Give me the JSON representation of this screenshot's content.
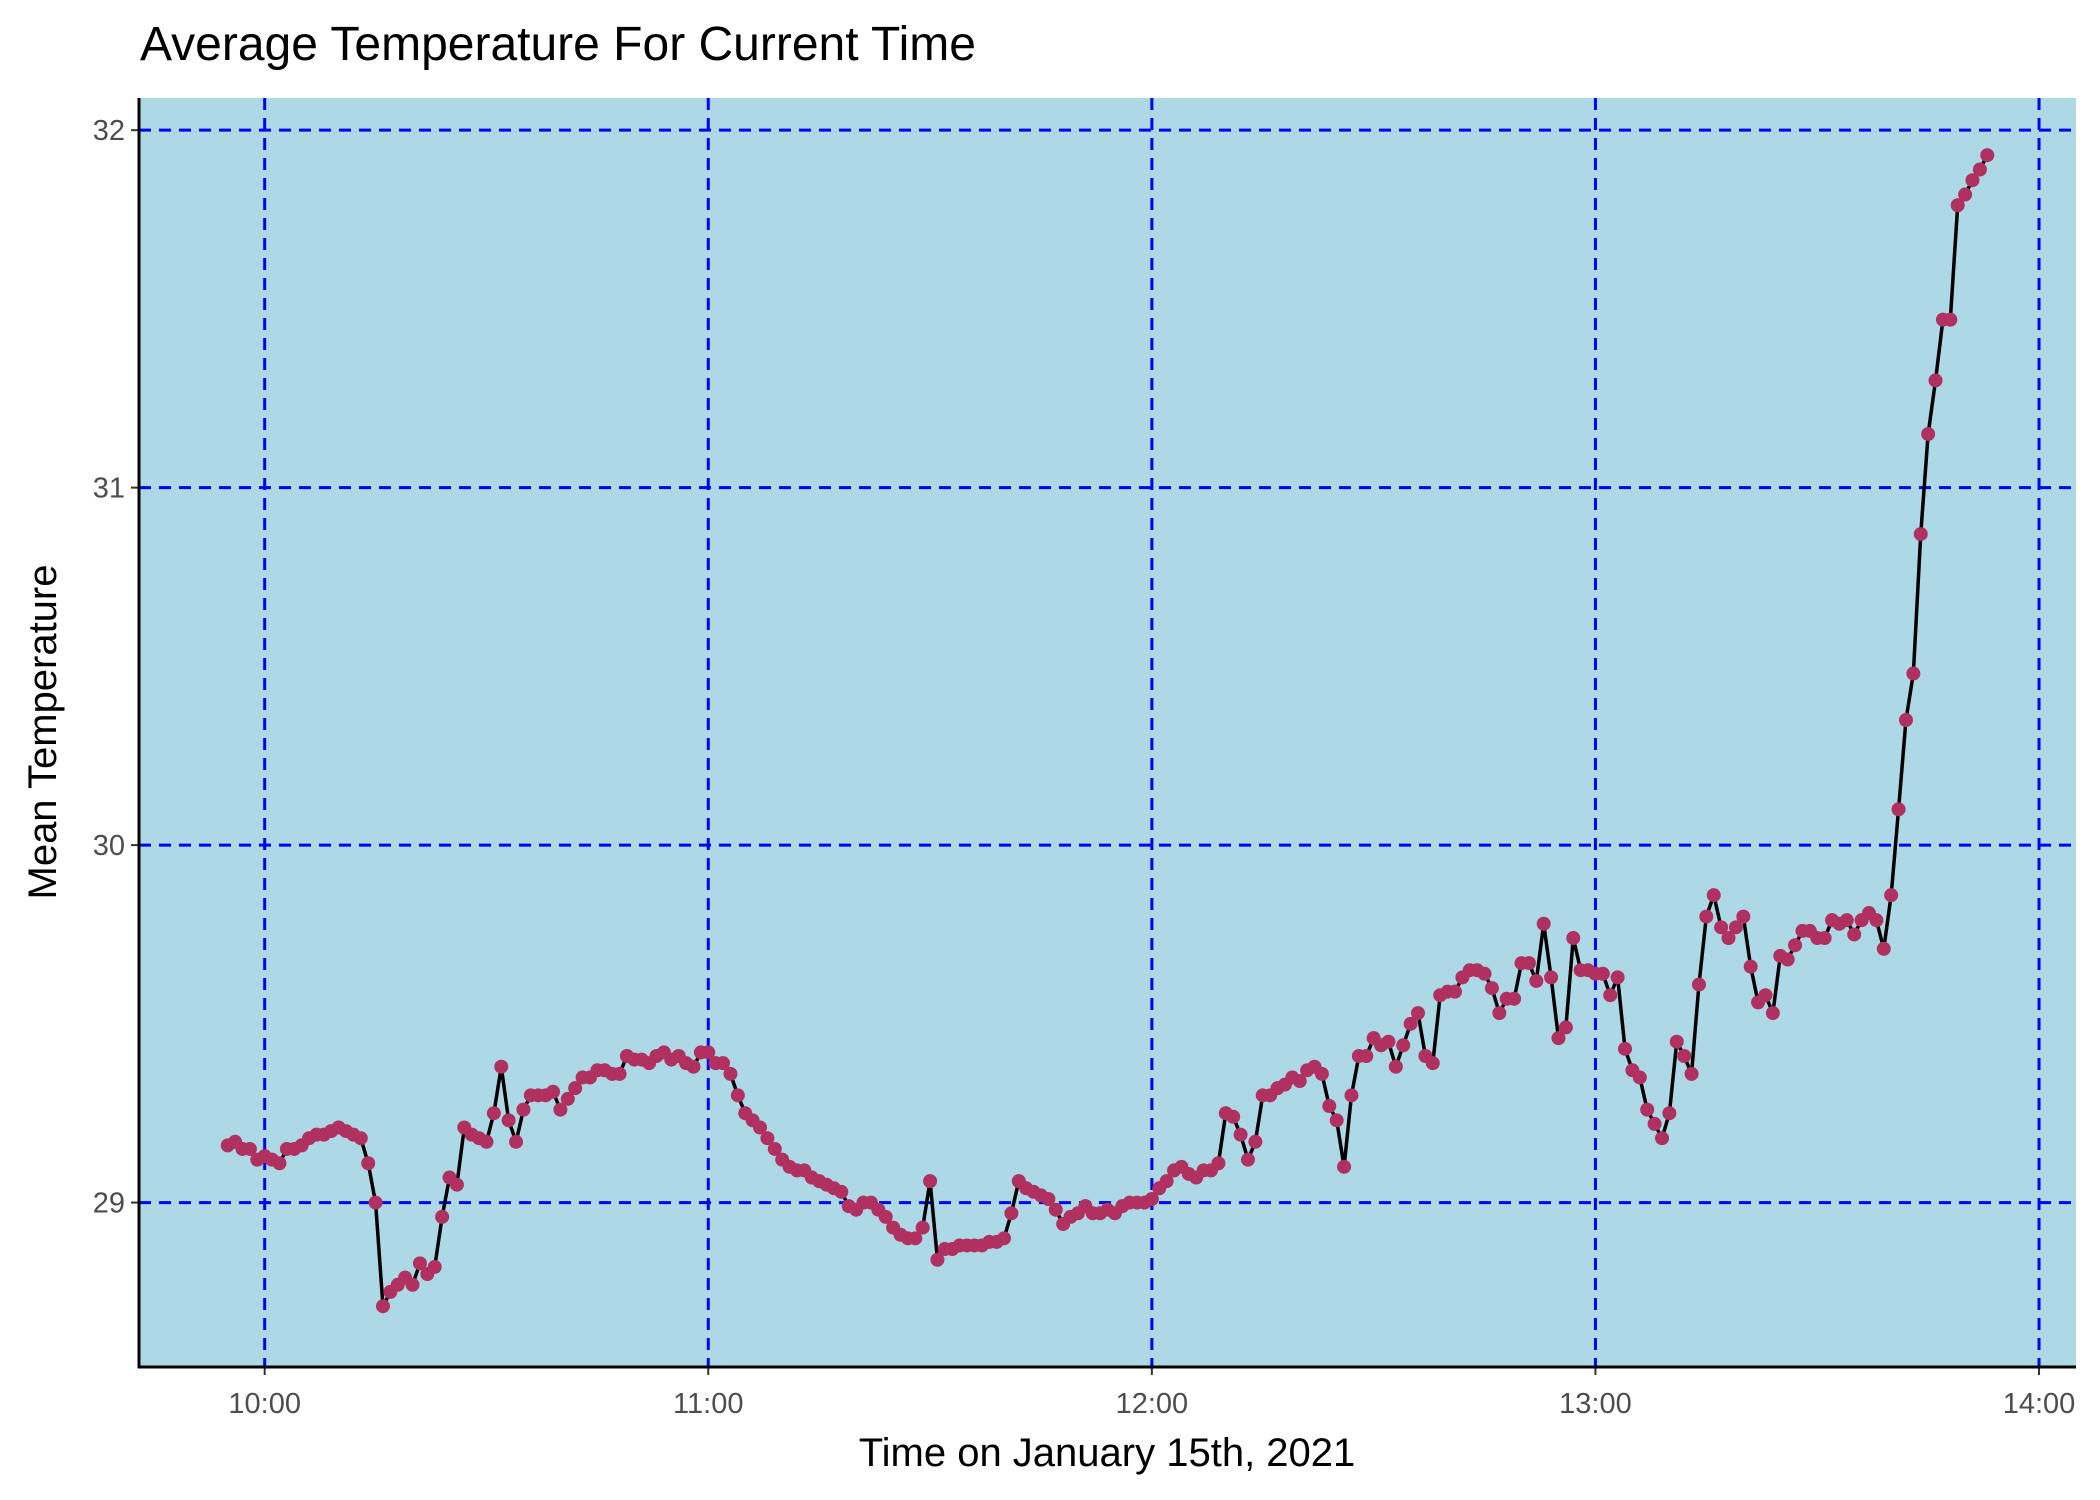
{
  "chart_data": {
    "type": "line",
    "title": "Average Temperature For Current Time",
    "x_label": "Time on January 15th, 2021",
    "y_label": "Mean Temperature",
    "background": "#add8e6",
    "grid": true,
    "grid_color": "#0000ff",
    "line_color": "#000000",
    "point_color": "#b03060",
    "xlim": [
      "09:43",
      "14:05"
    ],
    "ylim": [
      28.54,
      32.09
    ],
    "xticks": [
      "10:00",
      "11:00",
      "12:00",
      "13:00",
      "14:00"
    ],
    "yticks": [
      29,
      30,
      31,
      32
    ],
    "x": [
      "09:55",
      "09:56",
      "09:57",
      "09:58",
      "09:59",
      "10:00",
      "10:01",
      "10:02",
      "10:03",
      "10:04",
      "10:05",
      "10:06",
      "10:07",
      "10:08",
      "10:09",
      "10:10",
      "10:11",
      "10:12",
      "10:13",
      "10:14",
      "10:15",
      "10:16",
      "10:17",
      "10:18",
      "10:19",
      "10:20",
      "10:21",
      "10:22",
      "10:23",
      "10:24",
      "10:25",
      "10:26",
      "10:27",
      "10:28",
      "10:29",
      "10:30",
      "10:31",
      "10:32",
      "10:33",
      "10:34",
      "10:35",
      "10:36",
      "10:37",
      "10:38",
      "10:39",
      "10:40",
      "10:41",
      "10:42",
      "10:43",
      "10:44",
      "10:45",
      "10:46",
      "10:47",
      "10:48",
      "10:49",
      "10:50",
      "10:51",
      "10:52",
      "10:53",
      "10:54",
      "10:55",
      "10:56",
      "10:57",
      "10:58",
      "10:59",
      "11:00",
      "11:01",
      "11:02",
      "11:03",
      "11:04",
      "11:05",
      "11:06",
      "11:07",
      "11:08",
      "11:09",
      "11:10",
      "11:11",
      "11:12",
      "11:13",
      "11:14",
      "11:15",
      "11:16",
      "11:17",
      "11:18",
      "11:19",
      "11:20",
      "11:21",
      "11:22",
      "11:23",
      "11:24",
      "11:25",
      "11:26",
      "11:27",
      "11:28",
      "11:29",
      "11:30",
      "11:31",
      "11:32",
      "11:33",
      "11:34",
      "11:35",
      "11:36",
      "11:37",
      "11:38",
      "11:39",
      "11:40",
      "11:41",
      "11:42",
      "11:43",
      "11:44",
      "11:45",
      "11:46",
      "11:47",
      "11:48",
      "11:49",
      "11:50",
      "11:51",
      "11:52",
      "11:53",
      "11:54",
      "11:55",
      "11:56",
      "11:57",
      "11:58",
      "11:59",
      "12:00",
      "12:01",
      "12:02",
      "12:03",
      "12:04",
      "12:05",
      "12:06",
      "12:07",
      "12:08",
      "12:09",
      "12:10",
      "12:11",
      "12:12",
      "12:13",
      "12:14",
      "12:15",
      "12:16",
      "12:17",
      "12:18",
      "12:19",
      "12:20",
      "12:21",
      "12:22",
      "12:23",
      "12:24",
      "12:25",
      "12:26",
      "12:27",
      "12:28",
      "12:29",
      "12:30",
      "12:31",
      "12:32",
      "12:33",
      "12:34",
      "12:35",
      "12:36",
      "12:37",
      "12:38",
      "12:39",
      "12:40",
      "12:41",
      "12:42",
      "12:43",
      "12:44",
      "12:45",
      "12:46",
      "12:47",
      "12:48",
      "12:49",
      "12:50",
      "12:51",
      "12:52",
      "12:53",
      "12:54",
      "12:55",
      "12:56",
      "12:57",
      "12:58",
      "12:59",
      "13:00",
      "13:01",
      "13:02",
      "13:03",
      "13:04",
      "13:05",
      "13:06",
      "13:07",
      "13:08",
      "13:09",
      "13:10",
      "13:11",
      "13:12",
      "13:13",
      "13:14",
      "13:15",
      "13:16",
      "13:17",
      "13:18",
      "13:19",
      "13:20",
      "13:21",
      "13:22",
      "13:23",
      "13:24",
      "13:25",
      "13:26",
      "13:27",
      "13:28",
      "13:29",
      "13:30",
      "13:31",
      "13:32",
      "13:33",
      "13:34",
      "13:35",
      "13:36",
      "13:37",
      "13:38",
      "13:39",
      "13:40",
      "13:41",
      "13:42",
      "13:43",
      "13:44",
      "13:45",
      "13:46",
      "13:47",
      "13:48",
      "13:49",
      "13:50",
      "13:51",
      "13:52",
      "13:53"
    ],
    "values": [
      29.16,
      29.17,
      29.15,
      29.15,
      29.12,
      29.13,
      29.12,
      29.11,
      29.15,
      29.15,
      29.16,
      29.18,
      29.19,
      29.19,
      29.2,
      29.21,
      29.2,
      29.19,
      29.18,
      29.11,
      29.0,
      28.71,
      28.75,
      28.77,
      28.79,
      28.77,
      28.83,
      28.8,
      28.82,
      28.96,
      29.07,
      29.05,
      29.21,
      29.19,
      29.18,
      29.17,
      29.25,
      29.38,
      29.23,
      29.17,
      29.26,
      29.3,
      29.3,
      29.3,
      29.31,
      29.26,
      29.29,
      29.32,
      29.35,
      29.35,
      29.37,
      29.37,
      29.36,
      29.36,
      29.41,
      29.4,
      29.4,
      29.39,
      29.41,
      29.42,
      29.4,
      29.41,
      29.39,
      29.38,
      29.42,
      29.42,
      29.39,
      29.39,
      29.36,
      29.3,
      29.25,
      29.23,
      29.21,
      29.18,
      29.15,
      29.12,
      29.1,
      29.09,
      29.09,
      29.07,
      29.06,
      29.05,
      29.04,
      29.03,
      28.99,
      28.98,
      29.0,
      29.0,
      28.98,
      28.96,
      28.93,
      28.91,
      28.9,
      28.9,
      28.93,
      29.06,
      28.84,
      28.87,
      28.87,
      28.88,
      28.88,
      28.88,
      28.88,
      28.89,
      28.89,
      28.9,
      28.97,
      29.06,
      29.04,
      29.03,
      29.02,
      29.01,
      28.98,
      28.94,
      28.96,
      28.97,
      28.99,
      28.97,
      28.97,
      28.98,
      28.97,
      28.99,
      29.0,
      29.0,
      29.0,
      29.01,
      29.04,
      29.06,
      29.09,
      29.1,
      29.08,
      29.07,
      29.09,
      29.09,
      29.11,
      29.25,
      29.24,
      29.19,
      29.12,
      29.17,
      29.3,
      29.3,
      29.32,
      29.33,
      29.35,
      29.34,
      29.37,
      29.38,
      29.36,
      29.27,
      29.23,
      29.1,
      29.3,
      29.41,
      29.41,
      29.46,
      29.44,
      29.45,
      29.38,
      29.44,
      29.5,
      29.53,
      29.41,
      29.39,
      29.58,
      29.59,
      29.59,
      29.63,
      29.65,
      29.65,
      29.64,
      29.6,
      29.53,
      29.57,
      29.57,
      29.67,
      29.67,
      29.62,
      29.78,
      29.63,
      29.46,
      29.49,
      29.74,
      29.65,
      29.65,
      29.64,
      29.64,
      29.58,
      29.63,
      29.43,
      29.37,
      29.35,
      29.26,
      29.22,
      29.18,
      29.25,
      29.45,
      29.41,
      29.36,
      29.61,
      29.8,
      29.86,
      29.77,
      29.74,
      29.77,
      29.8,
      29.66,
      29.56,
      29.58,
      29.53,
      29.69,
      29.68,
      29.72,
      29.76,
      29.76,
      29.74,
      29.74,
      29.79,
      29.78,
      29.79,
      29.75,
      29.79,
      29.81,
      29.79,
      29.71,
      29.86,
      30.1,
      30.35,
      30.48,
      30.87,
      31.15,
      31.3,
      31.47,
      31.47,
      31.79,
      31.82,
      31.86,
      31.89,
      31.93
    ]
  }
}
